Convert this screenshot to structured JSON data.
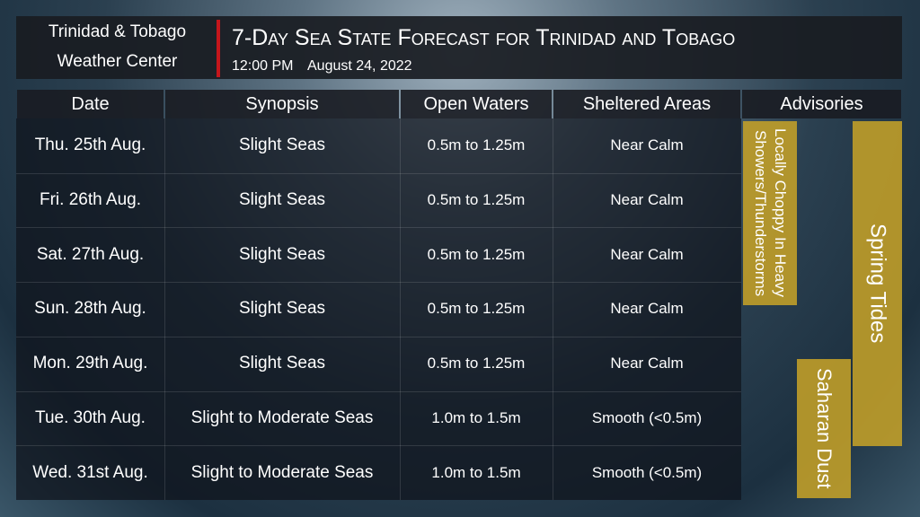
{
  "header": {
    "org": [
      "Trinidad & Tobago",
      "Weather Center"
    ],
    "title": "7-Day Sea State Forecast for Trinidad and Tobago",
    "time": "12:00 PM",
    "date": "August 24, 2022"
  },
  "table": {
    "columns": [
      "Date",
      "Synopsis",
      "Open Waters",
      "Sheltered Areas",
      "Advisories"
    ],
    "rows": [
      [
        "Thu. 25th Aug.",
        "Slight Seas",
        "0.5m to 1.25m",
        "Near Calm"
      ],
      [
        "Fri. 26th Aug.",
        "Slight Seas",
        "0.5m to 1.25m",
        "Near Calm"
      ],
      [
        "Sat. 27th Aug.",
        "Slight Seas",
        "0.5m to 1.25m",
        "Near Calm"
      ],
      [
        "Sun. 28th Aug.",
        "Slight Seas",
        "0.5m to 1.25m",
        "Near Calm"
      ],
      [
        "Mon. 29th Aug.",
        "Slight Seas",
        "0.5m to 1.25m",
        "Near Calm"
      ],
      [
        "Tue. 30th Aug.",
        "Slight to Moderate Seas",
        "1.0m to 1.5m",
        "Smooth (<0.5m)"
      ],
      [
        "Wed. 31st Aug.",
        "Slight to Moderate Seas",
        "1.0m to 1.5m",
        "Smooth (<0.5m)"
      ]
    ]
  },
  "advisories": [
    "Locally Choppy In Heavy Showers/Thunderstorms",
    "Spring Tides",
    "Saharan Dust"
  ]
}
